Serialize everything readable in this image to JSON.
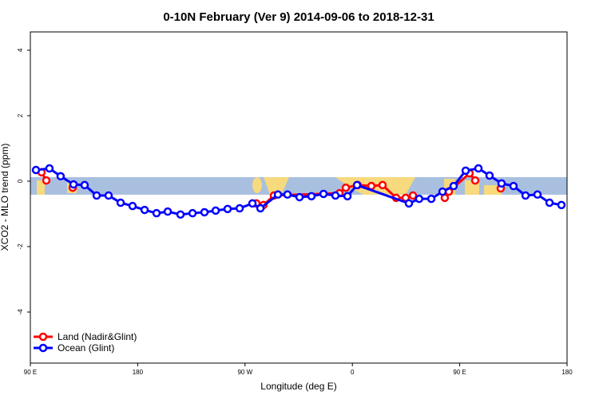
{
  "chart_data": {
    "type": "line",
    "title": "0-10N February (Ver 9)   2014-09-06 to 2018-12-31",
    "xlabel": "Longitude (deg E)",
    "ylabel": "XCO2 - MLO trend (ppm)",
    "xlim": [
      90,
      540
    ],
    "ylim": [
      -5.56,
      4.56
    ],
    "xticks": [
      {
        "value": 90,
        "label": "90 E"
      },
      180,
      {
        "value": 270,
        "label": "90 W"
      },
      {
        "value": 360,
        "label": "0"
      },
      {
        "value": 450,
        "label": "90 E"
      },
      {
        "value": 540,
        "label": "180"
      }
    ],
    "yticks": [
      -4,
      -2,
      0,
      2,
      4
    ],
    "legend": "bottom-left",
    "series": [
      {
        "name": "Land (Nadir&Glint)",
        "color": "#ff0000",
        "x": [
          99.4,
          103.4,
          114,
          125.5,
          200,
          279.5,
          285.5,
          294.2,
          349.2,
          354.5,
          364.5,
          375.9,
          385.3,
          396.7,
          404.7,
          410.8,
          425,
          437.5,
          440.9,
          458.3,
          463,
          475,
          484.4
        ],
        "values": [
          0.27,
          0.02,
          null,
          -0.2,
          null,
          -0.68,
          -0.73,
          -0.44,
          -0.37,
          -0.2,
          -0.12,
          -0.15,
          -0.12,
          -0.51,
          -0.51,
          -0.44,
          null,
          -0.51,
          -0.32,
          0.24,
          0.02,
          null,
          -0.22
        ]
      },
      {
        "name": "Ocean (Glint)",
        "color": "#0000ff",
        "x": [
          94.7,
          106,
          115.4,
          126.2,
          135.5,
          145.6,
          155.6,
          165.7,
          175.7,
          185.8,
          195.8,
          205.2,
          215.9,
          226,
          236,
          245.4,
          255.4,
          265.5,
          276.2,
          282.9,
          297.6,
          305.6,
          315.7,
          325.7,
          335.8,
          345.8,
          355.9,
          363.9,
          407.4,
          416,
          426.2,
          435.6,
          444.9,
          455,
          465.7,
          475,
          485.1,
          495.1,
          505.2,
          515.2,
          525.3,
          535.3
        ],
        "values": [
          0.34,
          0.39,
          0.15,
          -0.1,
          -0.12,
          -0.44,
          -0.44,
          -0.66,
          -0.76,
          -0.88,
          -0.98,
          -0.93,
          -1.02,
          -0.98,
          -0.95,
          -0.9,
          -0.85,
          -0.83,
          -0.68,
          -0.83,
          -0.41,
          -0.41,
          -0.49,
          -0.46,
          -0.39,
          -0.44,
          -0.46,
          -0.12,
          -0.68,
          -0.54,
          -0.54,
          -0.32,
          -0.15,
          0.32,
          0.39,
          0.17,
          -0.07,
          -0.15,
          -0.44,
          -0.41,
          -0.66,
          -0.73
        ]
      }
    ]
  }
}
